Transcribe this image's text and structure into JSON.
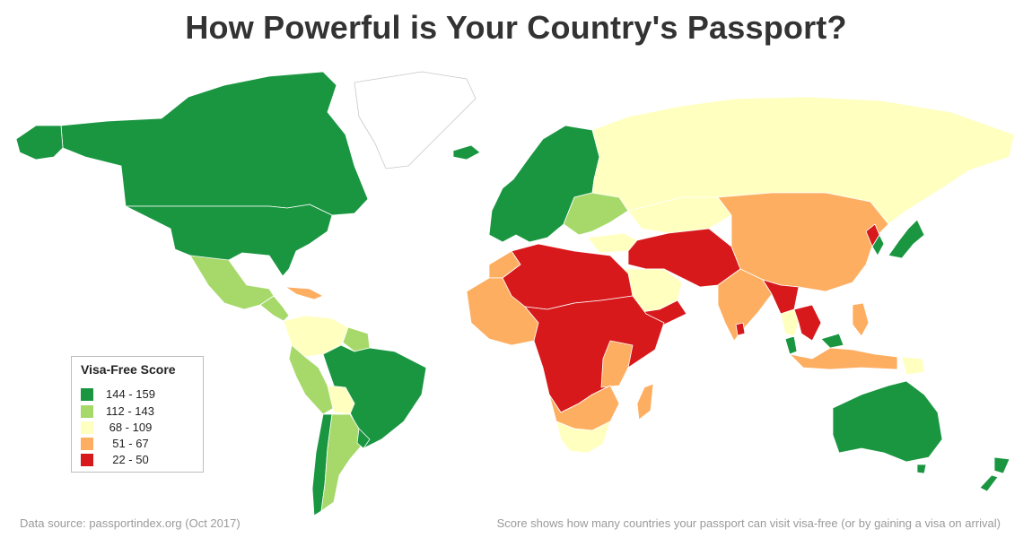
{
  "title": "How Powerful is Your Country's Passport?",
  "legend": {
    "title": "Visa-Free Score",
    "items": [
      {
        "label": "144 - 159",
        "color": "#1a9641"
      },
      {
        "label": "112 - 143",
        "color": "#a6d96a"
      },
      {
        "label": " 68 - 109",
        "color": "#ffffc0"
      },
      {
        "label": "  51 - 67",
        "color": "#fdae61"
      },
      {
        "label": "  22 - 50",
        "color": "#d7191c"
      }
    ]
  },
  "footer": {
    "source": "Data source: passportindex.org (Oct 2017)",
    "note": "Score shows how many countries your passport can visit visa-free (or by gaining a visa on arrival)"
  },
  "regions": [
    {
      "name": "Canada",
      "class": "144 - 159"
    },
    {
      "name": "Greenland",
      "class": "no data"
    },
    {
      "name": "United States",
      "class": "144 - 159"
    },
    {
      "name": "Alaska (US)",
      "class": "144 - 159"
    },
    {
      "name": "Mexico",
      "class": "112 - 143"
    },
    {
      "name": "Central America",
      "class": "112 - 143"
    },
    {
      "name": "Caribbean",
      "class": "51 - 67"
    },
    {
      "name": "Colombia / Venezuela",
      "class": "68 - 109"
    },
    {
      "name": "Guianas",
      "class": "112 - 143"
    },
    {
      "name": "Peru / Ecuador",
      "class": "112 - 143"
    },
    {
      "name": "Bolivia",
      "class": "68 - 109"
    },
    {
      "name": "Brazil",
      "class": "144 - 159"
    },
    {
      "name": "Chile",
      "class": "144 - 159"
    },
    {
      "name": "Argentina / Paraguay",
      "class": "112 - 143"
    },
    {
      "name": "Uruguay",
      "class": "144 - 159"
    },
    {
      "name": "Western & Northern Europe",
      "class": "144 - 159"
    },
    {
      "name": "Iceland",
      "class": "144 - 159"
    },
    {
      "name": "Ukraine / Balkans",
      "class": "112 - 143"
    },
    {
      "name": "Russia",
      "class": "68 - 109"
    },
    {
      "name": "Kazakhstan",
      "class": "68 - 109"
    },
    {
      "name": "Turkey",
      "class": "68 - 109"
    },
    {
      "name": "Middle East / Central Asia",
      "class": "22 - 50"
    },
    {
      "name": "Saudi Arabia / Gulf",
      "class": "68 - 109"
    },
    {
      "name": "Yemen",
      "class": "22 - 50"
    },
    {
      "name": "Mongolia / China",
      "class": "51 - 67"
    },
    {
      "name": "North Korea",
      "class": "22 - 50"
    },
    {
      "name": "South Korea",
      "class": "144 - 159"
    },
    {
      "name": "Japan",
      "class": "144 - 159"
    },
    {
      "name": "India",
      "class": "51 - 67"
    },
    {
      "name": "Nepal / Bangladesh / Myanmar",
      "class": "22 - 50"
    },
    {
      "name": "Sri Lanka",
      "class": "22 - 50"
    },
    {
      "name": "Thailand",
      "class": "68 - 109"
    },
    {
      "name": "Laos / Vietnam",
      "class": "22 - 50"
    },
    {
      "name": "Malaysia",
      "class": "144 - 159"
    },
    {
      "name": "Indonesia",
      "class": "51 - 67"
    },
    {
      "name": "Philippines",
      "class": "51 - 67"
    },
    {
      "name": "Papua New Guinea",
      "class": "68 - 109"
    },
    {
      "name": "North Africa",
      "class": "22 - 50"
    },
    {
      "name": "Morocco",
      "class": "51 - 67"
    },
    {
      "name": "West Africa",
      "class": "51 - 67"
    },
    {
      "name": "Central & East Africa",
      "class": "22 - 50"
    },
    {
      "name": "Kenya / Tanzania",
      "class": "51 - 67"
    },
    {
      "name": "Southern Africa",
      "class": "51 - 67"
    },
    {
      "name": "South Africa / Botswana",
      "class": "68 - 109"
    },
    {
      "name": "Madagascar",
      "class": "51 - 67"
    },
    {
      "name": "Australia",
      "class": "144 - 159"
    },
    {
      "name": "New Zealand",
      "class": "144 - 159"
    }
  ]
}
